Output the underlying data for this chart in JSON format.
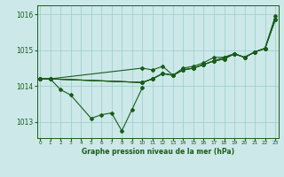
{
  "title": "Graphe pression niveau de la mer (hPa)",
  "bg_color": "#cce8e8",
  "line_color": "#1a5c1a",
  "grid_color": "#99cccc",
  "xlim": [
    -0.3,
    23.3
  ],
  "ylim": [
    1012.55,
    1016.25
  ],
  "yticks": [
    1013,
    1014,
    1015,
    1016
  ],
  "ytick_labels": [
    "1013",
    "1014",
    "1015",
    "1016"
  ],
  "xtick_labels": [
    "0",
    "1",
    "2",
    "3",
    "4",
    "5",
    "6",
    "7",
    "8",
    "9",
    "10",
    "11",
    "12",
    "13",
    "14",
    "15",
    "16",
    "17",
    "18",
    "19",
    "20",
    "21",
    "22",
    "23"
  ],
  "series": [
    [
      1014.2,
      1014.2,
      1013.9,
      1013.75,
      null,
      1013.1,
      1013.2,
      1013.25,
      1012.75,
      1013.35,
      1013.95,
      null,
      null,
      null,
      null,
      null,
      null,
      null,
      null,
      null,
      null,
      null,
      null,
      null
    ],
    [
      1014.2,
      1014.2,
      null,
      null,
      null,
      null,
      null,
      null,
      null,
      null,
      1014.1,
      1014.2,
      1014.35,
      1014.3,
      1014.45,
      1014.5,
      1014.6,
      1014.7,
      1014.75,
      1014.9,
      1014.8,
      1014.95,
      1015.05,
      1015.85
    ],
    [
      1014.2,
      1014.2,
      null,
      null,
      null,
      null,
      null,
      null,
      null,
      null,
      1014.1,
      1014.2,
      1014.35,
      1014.3,
      1014.45,
      1014.5,
      1014.6,
      1014.7,
      1014.75,
      1014.9,
      1014.8,
      1014.95,
      1015.05,
      1015.95
    ],
    [
      1014.2,
      1014.2,
      null,
      null,
      null,
      null,
      null,
      null,
      null,
      null,
      1014.5,
      1014.45,
      1014.55,
      1014.3,
      1014.5,
      1014.55,
      1014.65,
      1014.8,
      1014.8,
      1014.9,
      1014.8,
      1014.95,
      1015.05,
      1015.85
    ],
    [
      1014.2,
      1014.2,
      null,
      null,
      null,
      null,
      null,
      null,
      null,
      null,
      1014.1,
      1014.2,
      1014.35,
      1014.3,
      1014.45,
      1014.5,
      1014.6,
      1014.7,
      1014.8,
      1014.9,
      1014.8,
      1014.95,
      1015.05,
      1015.85
    ]
  ]
}
